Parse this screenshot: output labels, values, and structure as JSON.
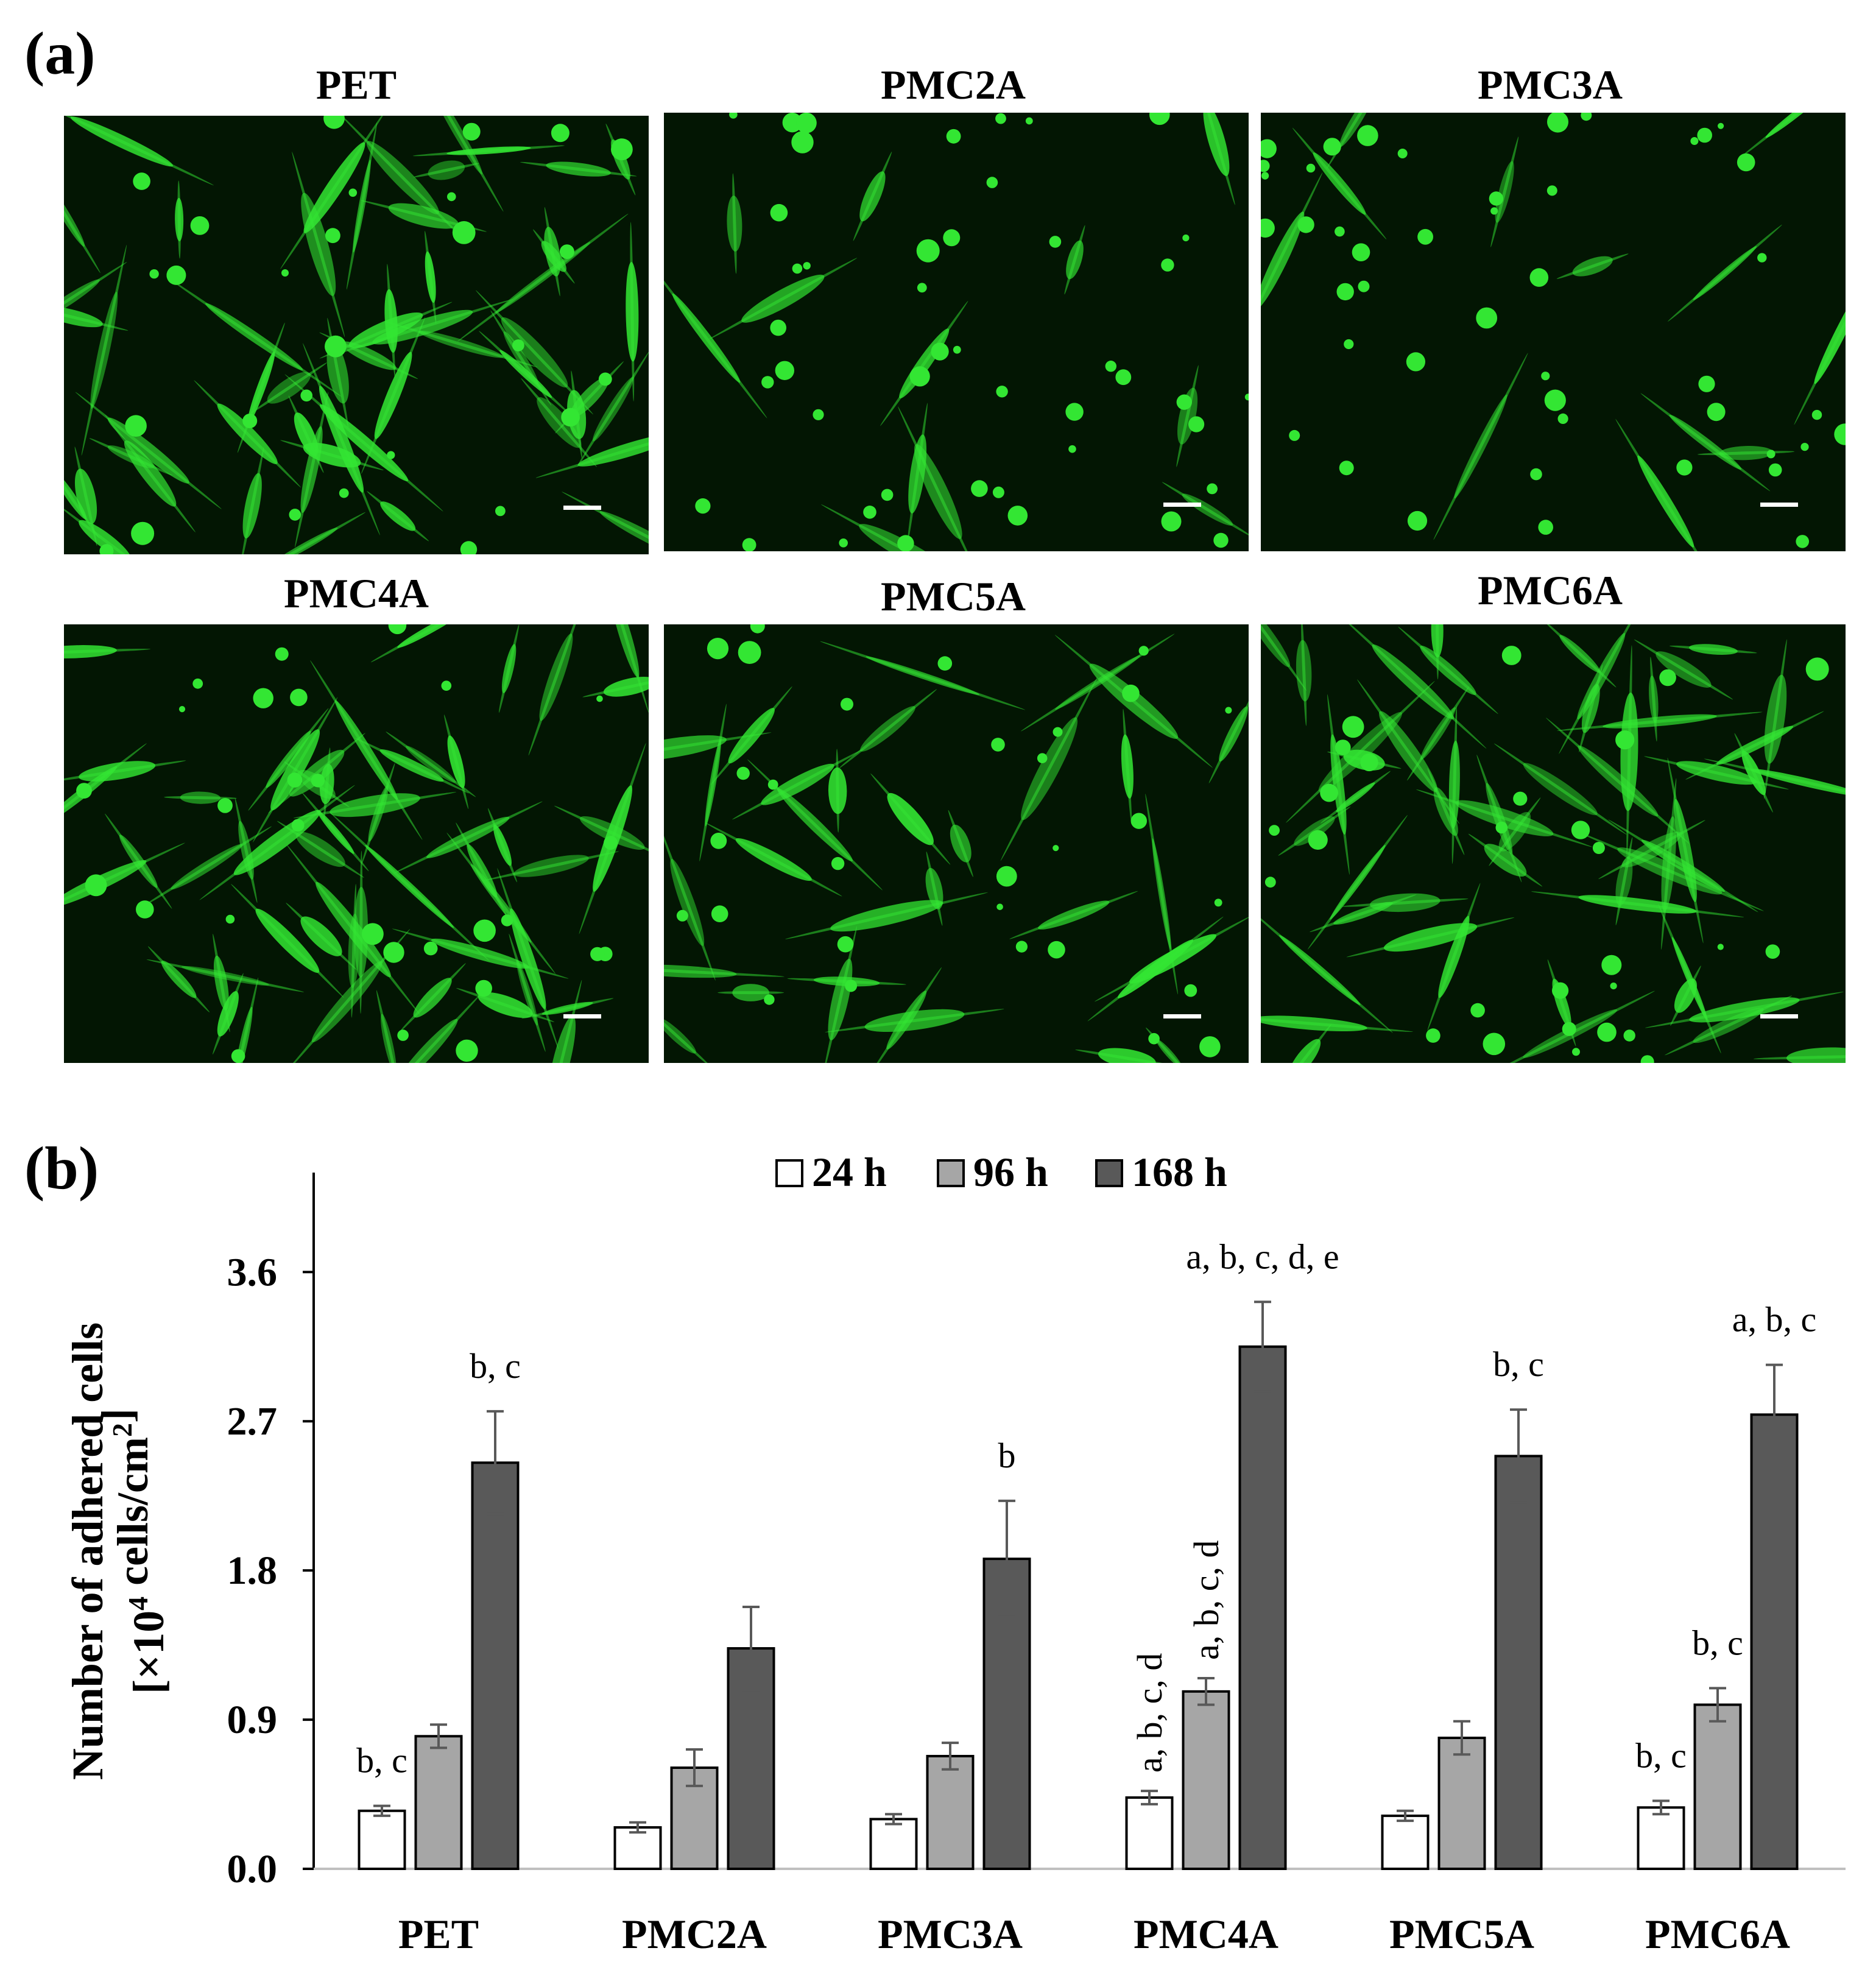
{
  "panel_a_label": "(a)",
  "panel_b_label": "(b)",
  "micrographs": [
    {
      "title": "PET",
      "density": "high",
      "scale_bar": true
    },
    {
      "title": "PMC2A",
      "density": "low",
      "scale_bar": true
    },
    {
      "title": "PMC3A",
      "density": "low",
      "scale_bar": true
    },
    {
      "title": "PMC4A",
      "density": "high",
      "scale_bar": true
    },
    {
      "title": "PMC5A",
      "density": "medium",
      "scale_bar": true
    },
    {
      "title": "PMC6A",
      "density": "high",
      "scale_bar": true
    }
  ],
  "colors": {
    "micro_background": "#031603",
    "cell_green": "#33e633",
    "bar_24h": "#ffffff",
    "bar_96h": "#a6a6a6",
    "bar_168h": "#595959",
    "error_bar": "#595959"
  },
  "chart_data": {
    "type": "bar",
    "categories": [
      "PET",
      "PMC2A",
      "PMC3A",
      "PMC4A",
      "PMC5A",
      "PMC6A"
    ],
    "series": [
      {
        "name": "24 h",
        "values": [
          0.35,
          0.25,
          0.3,
          0.43,
          0.32,
          0.37
        ],
        "errors": [
          0.03,
          0.03,
          0.03,
          0.04,
          0.03,
          0.04
        ],
        "labels": [
          "b, c",
          "",
          "",
          "a, b, c, d",
          "",
          "b, c"
        ]
      },
      {
        "name": "96 h",
        "values": [
          0.8,
          0.61,
          0.68,
          1.07,
          0.79,
          0.99
        ],
        "errors": [
          0.07,
          0.11,
          0.08,
          0.08,
          0.1,
          0.1
        ],
        "labels": [
          "",
          "",
          "",
          "a, b, c, d",
          "",
          "b, c"
        ]
      },
      {
        "name": "168 h",
        "values": [
          2.45,
          1.33,
          1.87,
          3.15,
          2.49,
          2.74
        ],
        "errors": [
          0.31,
          0.25,
          0.35,
          0.27,
          0.28,
          0.3
        ],
        "labels": [
          "b, c",
          "",
          "b",
          "a, b, c, d, e",
          "b, c",
          "a, b, c"
        ]
      }
    ],
    "ylabel_line1": "Number of adhered cells",
    "ylabel_line2_prefix": "[×10",
    "ylabel_line2_exp": "4",
    "ylabel_line2_mid": " cells/cm",
    "ylabel_line2_exp2": "2",
    "ylabel_line2_suffix": "]",
    "yticks": [
      "0.0",
      "0.9",
      "1.8",
      "2.7",
      "3.6"
    ],
    "ylim": [
      0,
      4.2
    ],
    "legend_position": "top-center",
    "grid": false
  }
}
